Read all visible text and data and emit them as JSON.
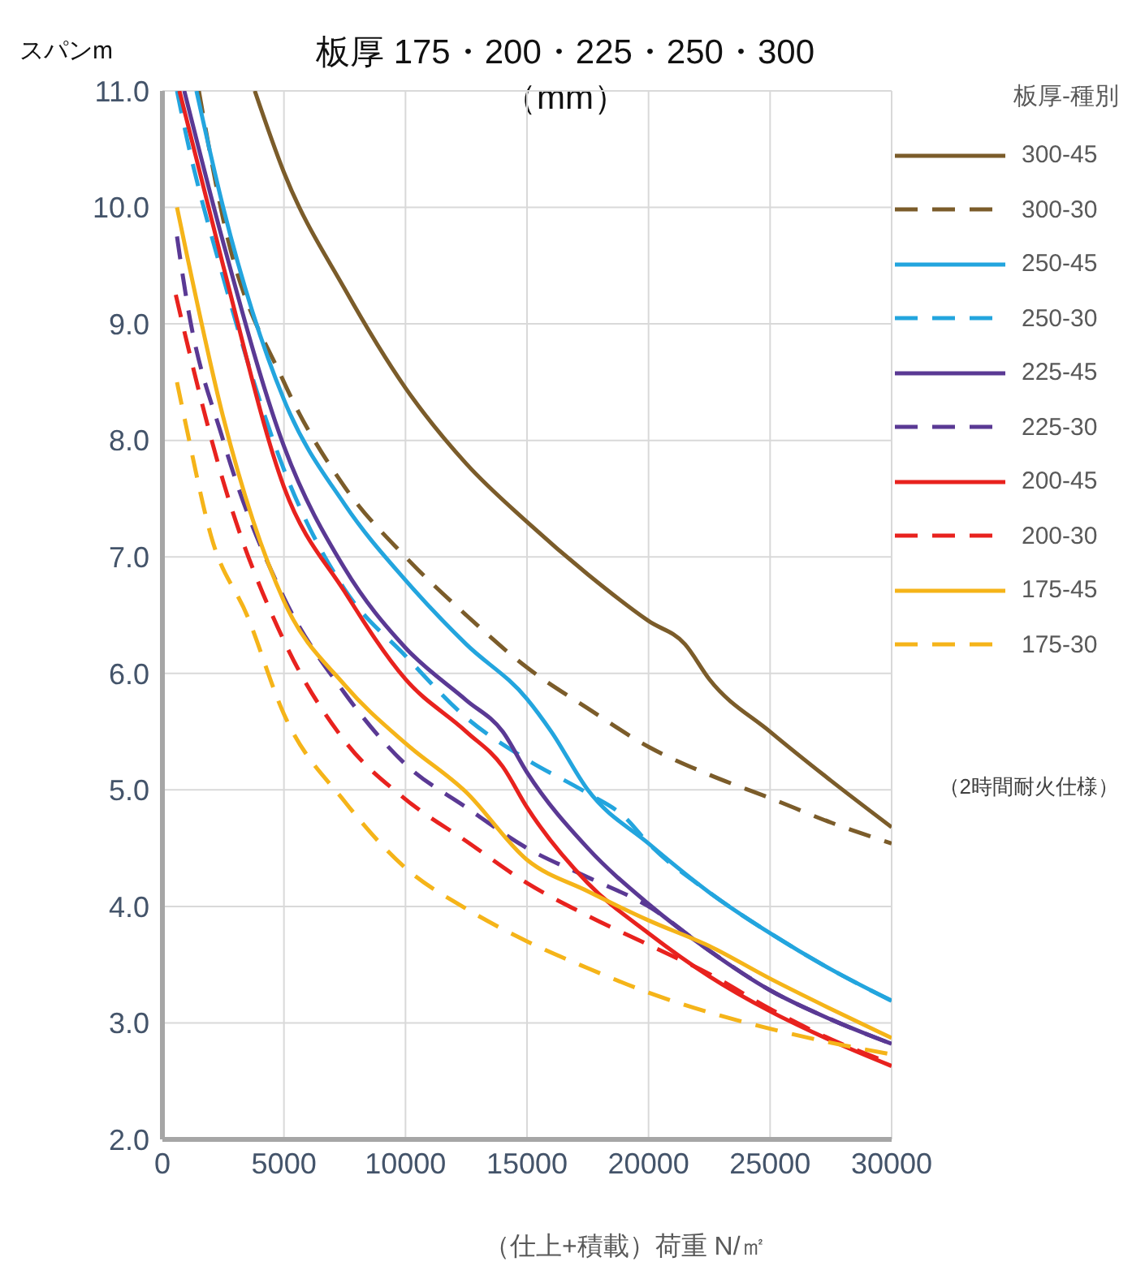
{
  "chart_data": {
    "type": "line",
    "title": "板厚 175・200・225・250・300（mm）",
    "ylabel": "スパンm",
    "xlabel": "（仕上+積載）荷重 N/㎡",
    "legend_title": "板厚-種別",
    "annotations": [
      "（2時間耐火仕様）"
    ],
    "xlim": [
      0,
      30000
    ],
    "xticks": [
      0,
      5000,
      10000,
      15000,
      20000,
      25000,
      30000
    ],
    "ylim": [
      2,
      11
    ],
    "yticks": [
      {
        "value": 2,
        "label": "2.0"
      },
      {
        "value": 3,
        "label": "3.0"
      },
      {
        "value": 4,
        "label": "4.0"
      },
      {
        "value": 5,
        "label": "5.0"
      },
      {
        "value": 6,
        "label": "6.0"
      },
      {
        "value": 7,
        "label": "7.0"
      },
      {
        "value": 8,
        "label": "8.0"
      },
      {
        "value": 9,
        "label": "9.0"
      },
      {
        "value": 10,
        "label": "10.0"
      },
      {
        "value": 11,
        "label": "11.0"
      }
    ],
    "grid": true,
    "legend": "right",
    "marker": "none",
    "series": [
      {
        "name": "300-45",
        "color": "#7b5c2a",
        "line_style": "solid",
        "x": [
          3800,
          5000,
          7500,
          10000,
          12500,
          15000,
          17500,
          20000,
          21500,
          22500,
          25000,
          27500,
          30000
        ],
        "values": [
          11.0,
          10.3,
          9.3,
          8.45,
          7.8,
          7.3,
          6.85,
          6.45,
          6.25,
          5.95,
          5.5,
          5.08,
          4.68
        ]
      },
      {
        "name": "300-30",
        "color": "#7b5c2a",
        "line_style": "dashed",
        "x": [
          1500,
          2500,
          5000,
          7500,
          10000,
          12500,
          15000,
          17500,
          20000,
          22500,
          25000,
          27500,
          30000
        ],
        "values": [
          11.0,
          9.9,
          8.5,
          7.6,
          7.0,
          6.5,
          6.05,
          5.7,
          5.37,
          5.13,
          4.93,
          4.72,
          4.54
        ]
      },
      {
        "name": "250-45",
        "color": "#23a5de",
        "line_style": "solid",
        "x": [
          1400,
          2500,
          5000,
          7500,
          10000,
          12500,
          15000,
          16000,
          17500,
          20000,
          22500,
          25000,
          27500,
          30000
        ],
        "values": [
          11.0,
          10.0,
          8.35,
          7.45,
          6.8,
          6.25,
          5.78,
          5.5,
          5.0,
          4.54,
          4.12,
          3.77,
          3.46,
          3.19
        ]
      },
      {
        "name": "250-30",
        "color": "#23a5de",
        "line_style": "dashed",
        "x": [
          600,
          1000,
          2500,
          5000,
          7500,
          10000,
          12500,
          15000,
          17500,
          19000,
          20000,
          22500,
          25000,
          27500,
          30000
        ],
        "values": [
          11.0,
          10.6,
          9.4,
          7.75,
          6.72,
          6.15,
          5.62,
          5.26,
          4.97,
          4.77,
          4.54,
          4.12,
          3.77,
          3.46,
          3.19
        ]
      },
      {
        "name": "225-45",
        "color": "#5a3994",
        "line_style": "solid",
        "x": [
          900,
          2500,
          5000,
          7500,
          10000,
          12500,
          14000,
          15000,
          17500,
          20000,
          22500,
          25000,
          27500,
          30000
        ],
        "values": [
          11.0,
          9.7,
          7.95,
          6.9,
          6.22,
          5.77,
          5.5,
          5.15,
          4.5,
          4.02,
          3.62,
          3.28,
          3.03,
          2.82
        ]
      },
      {
        "name": "225-30",
        "color": "#5a3994",
        "line_style": "dashed",
        "x": [
          600,
          1000,
          2500,
          5000,
          7500,
          10000,
          12500,
          15000,
          17500,
          20000,
          22500,
          25000,
          27500,
          30000
        ],
        "values": [
          9.75,
          9.2,
          8.0,
          6.65,
          5.83,
          5.22,
          4.85,
          4.5,
          4.25,
          4.0,
          3.62,
          3.28,
          3.03,
          2.82
        ]
      },
      {
        "name": "200-45",
        "color": "#e8221e",
        "line_style": "solid",
        "x": [
          700,
          2500,
          5000,
          7500,
          10000,
          12500,
          14000,
          15000,
          17500,
          20000,
          22500,
          25000,
          27500,
          30000
        ],
        "values": [
          11.0,
          9.5,
          7.6,
          6.7,
          5.95,
          5.5,
          5.2,
          4.85,
          4.2,
          3.77,
          3.4,
          3.1,
          2.85,
          2.63
        ]
      },
      {
        "name": "200-30",
        "color": "#e8221e",
        "line_style": "dashed",
        "x": [
          550,
          1000,
          2500,
          5000,
          7500,
          10000,
          12500,
          15000,
          17500,
          20000,
          22500,
          25000,
          27500,
          30000
        ],
        "values": [
          9.25,
          8.85,
          7.65,
          6.28,
          5.42,
          4.92,
          4.56,
          4.2,
          3.92,
          3.67,
          3.42,
          3.12,
          2.86,
          2.65
        ]
      },
      {
        "name": "175-45",
        "color": "#f5b419",
        "line_style": "solid",
        "x": [
          600,
          1000,
          2500,
          5000,
          7500,
          10000,
          12500,
          15000,
          17500,
          20000,
          22500,
          25000,
          27500,
          30000
        ],
        "values": [
          10.0,
          9.6,
          8.2,
          6.62,
          5.9,
          5.4,
          4.98,
          4.4,
          4.13,
          3.88,
          3.66,
          3.38,
          3.12,
          2.87
        ]
      },
      {
        "name": "175-30",
        "color": "#f5b419",
        "line_style": "dashed",
        "x": [
          600,
          1000,
          2000,
          3500,
          5000,
          7500,
          10000,
          12500,
          15000,
          17500,
          20000,
          22500,
          25000,
          27500,
          30000
        ],
        "values": [
          8.5,
          8.1,
          7.18,
          6.49,
          5.65,
          4.9,
          4.33,
          3.98,
          3.7,
          3.47,
          3.26,
          3.09,
          2.95,
          2.83,
          2.73
        ]
      }
    ]
  }
}
